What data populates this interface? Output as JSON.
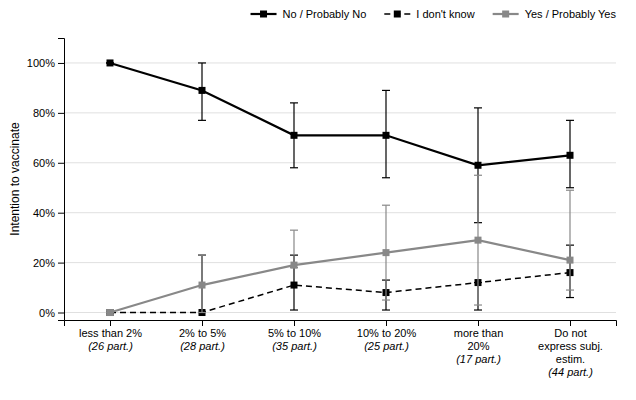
{
  "chart_data": {
    "type": "line",
    "y_label": "Intention to vaccinate",
    "categories": [
      [
        "less than 2%",
        "(26 part.)"
      ],
      [
        "2% to 5%",
        "(28 part.)"
      ],
      [
        "5% to 10%",
        "(35 part.)"
      ],
      [
        "10% to 20%",
        "(25 part.)"
      ],
      [
        "more than",
        "20%",
        "(17 part.)"
      ],
      [
        "Do not",
        "express subj.",
        "estim.",
        "(44 part.)"
      ]
    ],
    "series": [
      {
        "name": "No / Probably No",
        "color": "#000000",
        "line_style": "solid",
        "marker": "square",
        "values": [
          1.0,
          0.89,
          0.71,
          0.71,
          0.59,
          0.63
        ],
        "ci_lower": [
          1.0,
          0.77,
          0.58,
          0.54,
          0.36,
          0.5
        ],
        "ci_upper": [
          1.0,
          1.0,
          0.84,
          0.89,
          0.82,
          0.77
        ]
      },
      {
        "name": "I don't know",
        "color": "#000000",
        "line_style": "dashed",
        "marker": "square",
        "values": [
          0.0,
          0.0,
          0.11,
          0.08,
          0.12,
          0.16
        ],
        "ci_lower": [
          0.0,
          0.0,
          0.01,
          0.01,
          0.01,
          0.06
        ],
        "ci_upper": [
          0.0,
          0.23,
          0.23,
          0.13,
          0.12,
          0.27
        ]
      },
      {
        "name": "Yes / Probably Yes",
        "color": "#888888",
        "line_style": "solid",
        "marker": "square",
        "values": [
          0.0,
          0.11,
          0.19,
          0.24,
          0.29,
          0.21
        ],
        "ci_lower": [
          0.0,
          0.0,
          0.18,
          0.05,
          0.03,
          0.09
        ],
        "ci_upper": [
          0.0,
          0.23,
          0.33,
          0.43,
          0.55,
          0.49
        ]
      }
    ],
    "ylim": [
      -0.03,
      1.1
    ],
    "yticks": [
      {
        "value": 0.0,
        "label": "0%"
      },
      {
        "value": 0.2,
        "label": "20%"
      },
      {
        "value": 0.4,
        "label": "40%"
      },
      {
        "value": 0.6,
        "label": "60%"
      },
      {
        "value": 0.8,
        "label": "80%"
      },
      {
        "value": 1.0,
        "label": "100%"
      }
    ],
    "grid": true,
    "legend": "upper right"
  }
}
